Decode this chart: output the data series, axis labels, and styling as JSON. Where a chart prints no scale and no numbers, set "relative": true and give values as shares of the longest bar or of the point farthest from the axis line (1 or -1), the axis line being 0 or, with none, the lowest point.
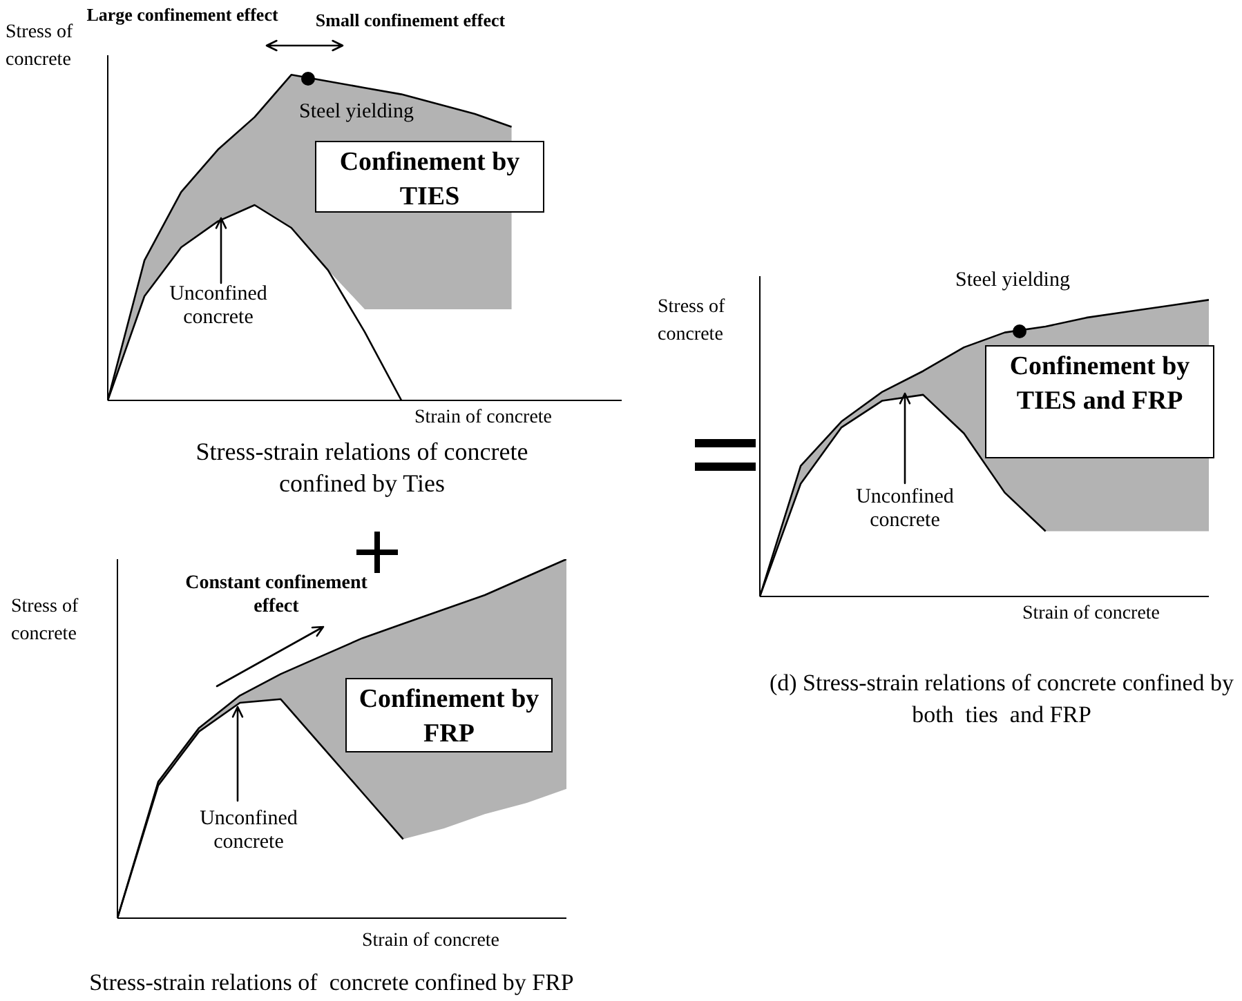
{
  "chart_data": [
    {
      "type": "line",
      "relative": true,
      "title": "Stress-strain relations of concrete confined by Ties",
      "xlabel": "Strain of concrete",
      "ylabel": "Stress of concrete",
      "annotations": [
        "Large confinement effect",
        "Small confinement effect",
        "Steel yielding",
        "Confinement by TIES",
        "Unconfined concrete"
      ],
      "categories": [
        null,
        null,
        null,
        null,
        null,
        null,
        null,
        null,
        null,
        null,
        null,
        null,
        null,
        null,
        null
      ],
      "series": [
        {
          "color": "#000000",
          "values": [
            0,
            0.43,
            0.64,
            0.77,
            0.87,
            1,
            0.98,
            0.96,
            0.94,
            0.91,
            0.88,
            0.84,
            null,
            null,
            null
          ],
          "lower": [
            0,
            0.32,
            0.47,
            0.55,
            0.6,
            0.53,
            0.4,
            0.28,
            0.28,
            0.28,
            0.28,
            0.28,
            null,
            null,
            null
          ],
          "upper": [
            0,
            0.43,
            0.64,
            0.77,
            0.87,
            1,
            0.98,
            0.96,
            0.94,
            0.91,
            0.88,
            0.84,
            null,
            null,
            null
          ]
        },
        {
          "color": "#000000",
          "values": [
            0,
            0.32,
            0.47,
            0.55,
            0.6,
            0.53,
            0.4,
            0.21,
            0,
            null,
            null,
            null,
            null,
            null,
            null
          ]
        }
      ]
    },
    {
      "type": "line",
      "relative": true,
      "title": "Stress-strain relations of  concrete confined by FRP",
      "xlabel": "Strain of concrete",
      "ylabel": "Stress of concrete",
      "annotations": [
        "Constant confinement effect",
        "Confinement by FRP",
        "Unconfined concrete"
      ],
      "categories": [
        null,
        null,
        null,
        null,
        null,
        null,
        null,
        null,
        null,
        null,
        null,
        null
      ],
      "series": [
        {
          "color": "#000000",
          "values": [
            0,
            0.38,
            0.53,
            0.62,
            0.68,
            0.73,
            0.78,
            0.82,
            0.86,
            0.9,
            0.95,
            1
          ],
          "lower": [
            0,
            0.37,
            0.52,
            0.6,
            0.61,
            0.48,
            0.35,
            0.22,
            0.25,
            0.29,
            0.32,
            0.36
          ],
          "upper": [
            0,
            0.38,
            0.53,
            0.62,
            0.68,
            0.73,
            0.78,
            0.82,
            0.86,
            0.9,
            0.95,
            1
          ]
        },
        {
          "color": "#000000",
          "values": [
            0,
            0.37,
            0.52,
            0.6,
            0.61,
            0.48,
            0.35,
            0.22,
            null,
            null,
            null,
            null
          ]
        }
      ]
    },
    {
      "type": "line",
      "relative": true,
      "title": "(d) Stress-strain relations of concrete confined by both  ties  and FRP",
      "xlabel": "Strain of concrete",
      "ylabel": "Stress of concrete",
      "annotations": [
        "Steel yielding",
        "Confinement by TIES and FRP",
        "Unconfined concrete"
      ],
      "categories": [
        null,
        null,
        null,
        null,
        null,
        null,
        null,
        null,
        null,
        null,
        null,
        null
      ],
      "series": [
        {
          "color": "#000000",
          "values": [
            0,
            0.44,
            0.59,
            0.69,
            0.76,
            0.84,
            0.89,
            0.91,
            0.94,
            0.96,
            0.98,
            1
          ],
          "lower": [
            0,
            0.38,
            0.57,
            0.66,
            0.68,
            0.55,
            0.35,
            0.22,
            0.22,
            0.22,
            0.22,
            0.22
          ],
          "upper": [
            0,
            0.44,
            0.59,
            0.69,
            0.76,
            0.84,
            0.89,
            0.91,
            0.94,
            0.96,
            0.98,
            1
          ]
        },
        {
          "color": "#000000",
          "values": [
            0,
            0.38,
            0.57,
            0.66,
            0.68,
            0.55,
            0.35,
            0.22,
            null,
            null,
            null,
            null
          ]
        }
      ]
    }
  ]
}
